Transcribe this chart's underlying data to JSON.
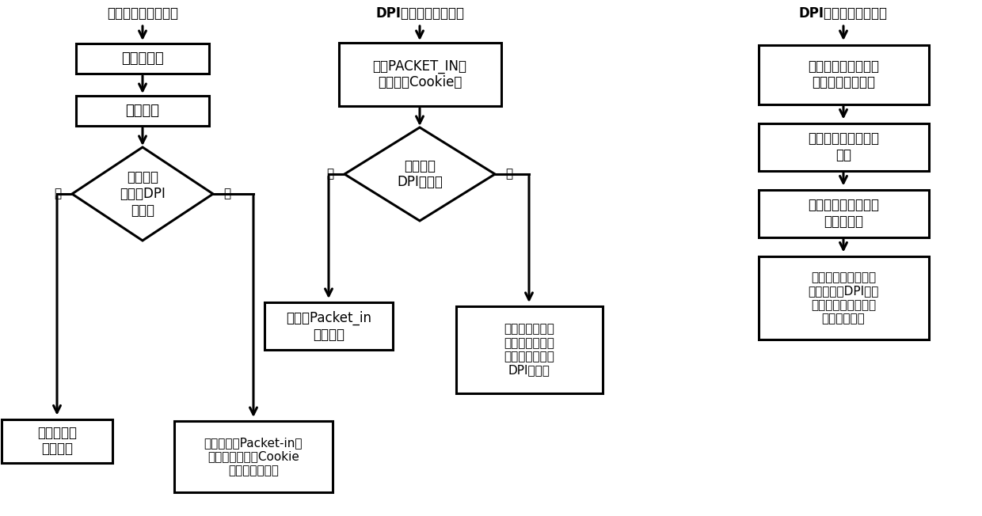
{
  "title_left": "网络设备的运行流程",
  "title_mid": "DPI控制器的运行流程",
  "title_right": "DPI服务器的运行流程",
  "bg_color": "#ffffff",
  "box_color": "#ffffff",
  "box_edge": "#000000",
  "arrow_color": "#000000",
  "font_color": "#000000",
  "lw": 2.2
}
